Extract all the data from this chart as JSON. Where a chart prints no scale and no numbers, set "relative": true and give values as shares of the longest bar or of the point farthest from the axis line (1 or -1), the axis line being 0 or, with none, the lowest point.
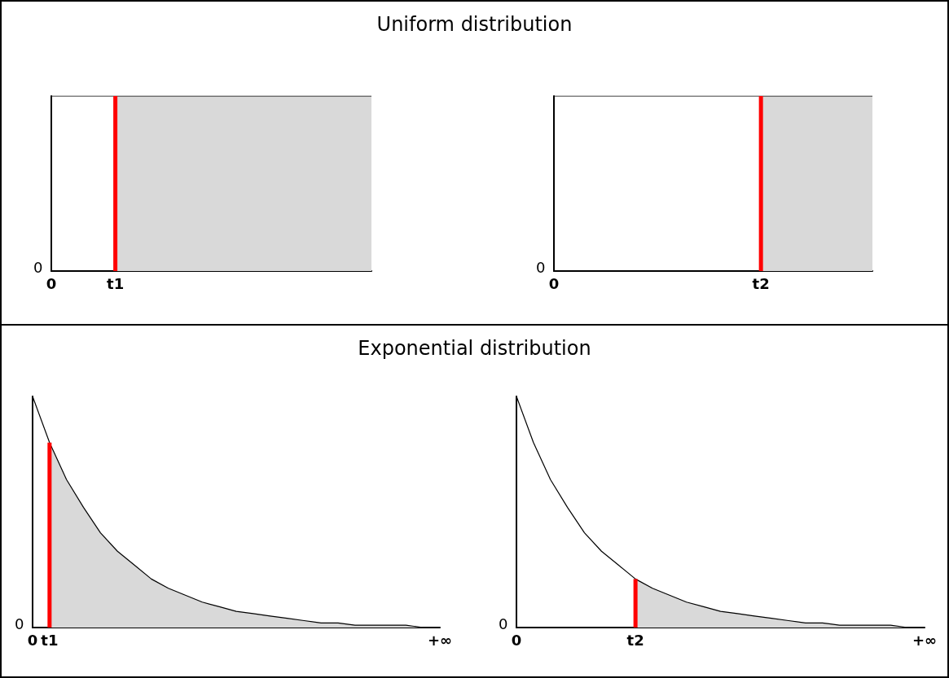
{
  "chart_data": [
    {
      "type": "area",
      "relative": true,
      "title": "Uniform distribution",
      "annotations": [
        "0"
      ],
      "categories": [
        "0",
        null,
        null,
        null,
        "t1",
        null,
        null,
        null,
        null,
        null,
        null,
        null,
        null,
        null,
        null,
        null,
        null,
        null,
        null,
        null,
        null
      ],
      "series": [
        {
          "type": "line",
          "color": "#000000",
          "values": [
            1,
            1,
            1,
            1,
            1,
            1,
            1,
            1,
            1,
            1,
            1,
            1,
            1,
            1,
            1,
            1,
            1,
            1,
            1,
            1,
            1
          ]
        },
        {
          "color": "#d9d9d9",
          "values": [
            null,
            null,
            null,
            null,
            1,
            1,
            1,
            1,
            1,
            1,
            1,
            1,
            1,
            1,
            1,
            1,
            1,
            1,
            1,
            1,
            1
          ]
        },
        {
          "type": "bar",
          "color": "#ff0000",
          "values": [
            null,
            null,
            null,
            null,
            1,
            null,
            null,
            null,
            null,
            null,
            null,
            null,
            null,
            null,
            null,
            null,
            null,
            null,
            null,
            null,
            null
          ]
        }
      ]
    },
    {
      "type": "area",
      "relative": true,
      "annotations": [
        "0"
      ],
      "categories": [
        "0",
        null,
        null,
        null,
        null,
        null,
        null,
        null,
        null,
        null,
        null,
        null,
        null,
        "t2",
        null,
        null,
        null,
        null,
        null,
        null,
        null
      ],
      "series": [
        {
          "type": "line",
          "color": "#000000",
          "values": [
            1,
            1,
            1,
            1,
            1,
            1,
            1,
            1,
            1,
            1,
            1,
            1,
            1,
            1,
            1,
            1,
            1,
            1,
            1,
            1,
            1
          ]
        },
        {
          "color": "#d9d9d9",
          "values": [
            null,
            null,
            null,
            null,
            null,
            null,
            null,
            null,
            null,
            null,
            null,
            null,
            null,
            1,
            1,
            1,
            1,
            1,
            1,
            1,
            1
          ]
        },
        {
          "type": "bar",
          "color": "#ff0000",
          "values": [
            null,
            null,
            null,
            null,
            null,
            null,
            null,
            null,
            null,
            null,
            null,
            null,
            null,
            1,
            null,
            null,
            null,
            null,
            null,
            null,
            null
          ]
        }
      ]
    },
    {
      "type": "area",
      "relative": true,
      "title": "Exponential distribution",
      "annotations": [
        "0"
      ],
      "categories": [
        "0",
        "t1",
        null,
        null,
        null,
        null,
        null,
        null,
        null,
        null,
        null,
        null,
        null,
        null,
        null,
        null,
        null,
        null,
        null,
        null,
        null,
        null,
        null,
        null,
        "+∞"
      ],
      "series": [
        {
          "type": "line",
          "color": "#000000",
          "values": [
            1,
            0.8,
            0.64,
            0.52,
            0.41,
            0.33,
            0.27,
            0.21,
            0.17,
            0.14,
            0.11,
            0.09,
            0.07,
            0.06,
            0.05,
            0.04,
            0.03,
            0.02,
            0.02,
            0.01,
            0.01,
            0.01,
            0.01,
            0,
            0
          ]
        },
        {
          "color": "#d9d9d9",
          "values": [
            null,
            0.8,
            0.64,
            0.52,
            0.41,
            0.33,
            0.27,
            0.21,
            0.17,
            0.14,
            0.11,
            0.09,
            0.07,
            0.06,
            0.05,
            0.04,
            0.03,
            0.02,
            0.02,
            0.01,
            0.01,
            0.01,
            0.01,
            0,
            0
          ]
        },
        {
          "type": "bar",
          "color": "#ff0000",
          "values": [
            null,
            0.8,
            null,
            null,
            null,
            null,
            null,
            null,
            null,
            null,
            null,
            null,
            null,
            null,
            null,
            null,
            null,
            null,
            null,
            null,
            null,
            null,
            null,
            null,
            null
          ]
        }
      ]
    },
    {
      "type": "area",
      "relative": true,
      "annotations": [
        "0"
      ],
      "categories": [
        "0",
        null,
        null,
        null,
        null,
        null,
        null,
        "t2",
        null,
        null,
        null,
        null,
        null,
        null,
        null,
        null,
        null,
        null,
        null,
        null,
        null,
        null,
        null,
        null,
        "+∞"
      ],
      "series": [
        {
          "type": "line",
          "color": "#000000",
          "values": [
            1,
            0.8,
            0.64,
            0.52,
            0.41,
            0.33,
            0.27,
            0.21,
            0.17,
            0.14,
            0.11,
            0.09,
            0.07,
            0.06,
            0.05,
            0.04,
            0.03,
            0.02,
            0.02,
            0.01,
            0.01,
            0.01,
            0.01,
            0,
            0
          ]
        },
        {
          "color": "#d9d9d9",
          "values": [
            null,
            null,
            null,
            null,
            null,
            null,
            null,
            0.21,
            0.17,
            0.14,
            0.11,
            0.09,
            0.07,
            0.06,
            0.05,
            0.04,
            0.03,
            0.02,
            0.02,
            0.01,
            0.01,
            0.01,
            0.01,
            0,
            0
          ]
        },
        {
          "type": "bar",
          "color": "#ff0000",
          "values": [
            null,
            null,
            null,
            null,
            null,
            null,
            null,
            0.21,
            null,
            null,
            null,
            null,
            null,
            null,
            null,
            null,
            null,
            null,
            null,
            null,
            null,
            null,
            null,
            null,
            null
          ]
        }
      ]
    }
  ]
}
